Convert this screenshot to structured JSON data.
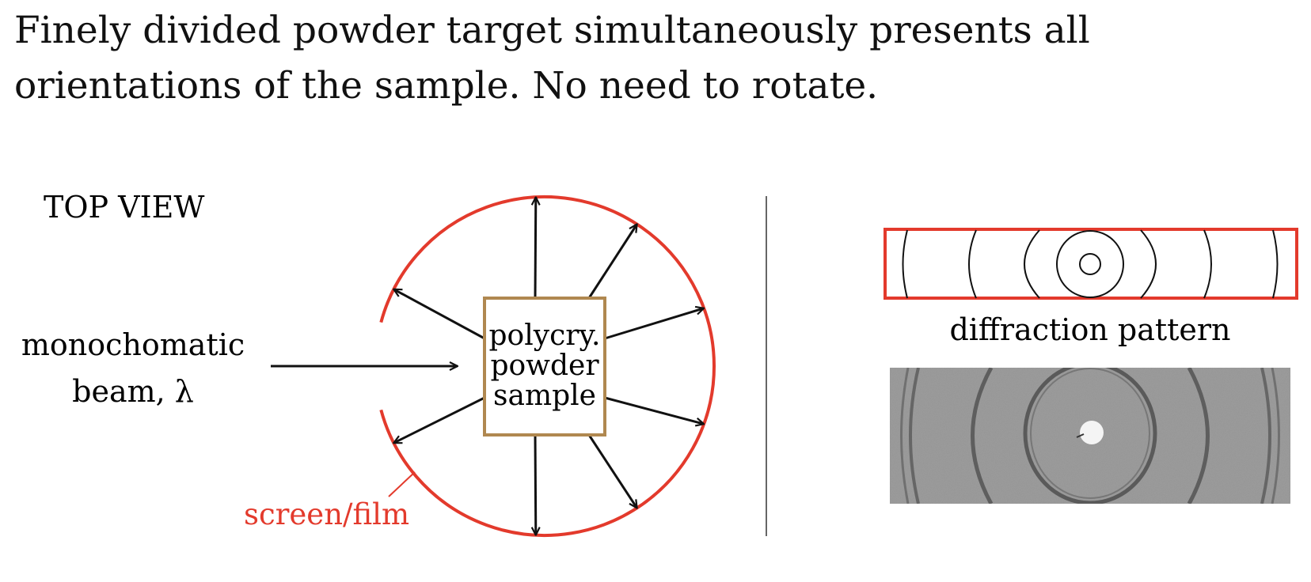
{
  "intro": {
    "line1": "Finely divided powder target simultaneously presents all",
    "line2": "orientations of the sample.  No need to rotate."
  },
  "left_panel": {
    "heading": "TOP VIEW",
    "beam_label_line1": "monochomatic",
    "beam_label_line2": "beam, λ",
    "sample_label_line1": "polycry.",
    "sample_label_line2": "powder",
    "sample_label_line3": "sample",
    "screen_label": "screen/film"
  },
  "right_panel": {
    "pattern_caption": "diffraction pattern"
  },
  "colors": {
    "screen": "#e33a2c",
    "sample_box": "#b08850",
    "ink": "#111111",
    "divider": "#666666",
    "photo_bg": "#9c9c9c",
    "photo_ring": "#555555"
  }
}
